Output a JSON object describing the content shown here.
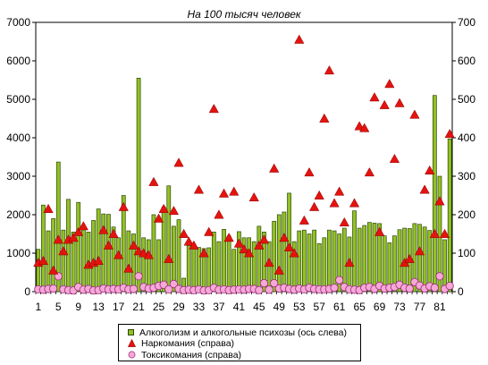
{
  "chart_data": {
    "type": "bar",
    "title": "На 100 тысяч человек",
    "x": [
      1,
      2,
      3,
      4,
      5,
      6,
      7,
      8,
      9,
      10,
      11,
      12,
      13,
      14,
      15,
      16,
      17,
      18,
      19,
      20,
      21,
      22,
      23,
      24,
      25,
      26,
      27,
      28,
      29,
      30,
      31,
      32,
      33,
      34,
      35,
      36,
      37,
      38,
      39,
      40,
      41,
      42,
      43,
      44,
      45,
      46,
      47,
      48,
      49,
      50,
      51,
      52,
      53,
      54,
      55,
      56,
      57,
      58,
      59,
      60,
      61,
      62,
      63,
      64,
      65,
      66,
      67,
      68,
      69,
      70,
      71,
      72,
      73,
      74,
      75,
      76,
      77,
      78,
      79,
      80,
      81,
      82,
      83
    ],
    "x_tick_labels": [
      "1",
      "5",
      "9",
      "13",
      "17",
      "21",
      "25",
      "29",
      "33",
      "37",
      "41",
      "45",
      "49",
      "53",
      "57",
      "61",
      "65",
      "69",
      "73",
      "77",
      "81"
    ],
    "y_left_ticks": [
      "0",
      "1000",
      "2000",
      "3000",
      "4000",
      "5000",
      "6000",
      "7000"
    ],
    "y_right_ticks": [
      "0",
      "100",
      "200",
      "300",
      "400",
      "500",
      "600",
      "700"
    ],
    "y_left_lim": [
      0,
      7000
    ],
    "y_right_lim": [
      0,
      700
    ],
    "grid": false,
    "legend_position": "bottom",
    "series": [
      {
        "name": "Алкоголизм и алкогольные психозы (ось слева)",
        "axis": "left",
        "kind": "bar",
        "color": "#93c024",
        "values": [
          1100,
          2250,
          1580,
          1900,
          3370,
          1600,
          2400,
          1550,
          2320,
          1700,
          1550,
          1850,
          2150,
          2020,
          2010,
          1680,
          1400,
          2500,
          1580,
          1500,
          5550,
          1400,
          1350,
          2000,
          1350,
          2200,
          2750,
          1700,
          1870,
          350,
          1200,
          1150,
          1150,
          1120,
          1140,
          1550,
          1300,
          1620,
          1450,
          1100,
          1560,
          1400,
          1400,
          1300,
          1700,
          1550,
          1300,
          1830,
          2000,
          2070,
          2560,
          1300,
          1580,
          1600,
          1500,
          1600,
          1250,
          1400,
          1600,
          1580,
          1500,
          1650,
          1420,
          2100,
          1650,
          1720,
          1800,
          1780,
          1770,
          1450,
          1270,
          1450,
          1610,
          1650,
          1640,
          1770,
          1750,
          1680,
          1590,
          5100,
          3000,
          1350,
          3970
        ]
      },
      {
        "name": "Наркомания (справа)",
        "axis": "right",
        "kind": "triangle",
        "color": "#e4130f",
        "values": [
          75,
          80,
          215,
          55,
          135,
          105,
          135,
          140,
          155,
          170,
          70,
          75,
          80,
          160,
          120,
          150,
          95,
          220,
          60,
          120,
          105,
          100,
          95,
          285,
          190,
          215,
          85,
          210,
          335,
          150,
          130,
          120,
          265,
          100,
          155,
          475,
          200,
          255,
          140,
          260,
          125,
          110,
          100,
          245,
          120,
          135,
          75,
          320,
          55,
          140,
          115,
          100,
          655,
          185,
          310,
          220,
          250,
          450,
          575,
          230,
          260,
          180,
          75,
          230,
          430,
          425,
          310,
          505,
          155,
          485,
          540,
          345,
          490,
          75,
          85,
          460,
          105,
          265,
          315,
          150,
          235,
          150,
          410
        ]
      },
      {
        "name": "Токсикомания (справа)",
        "axis": "right",
        "kind": "circle",
        "color": "#f6a8d8",
        "values": [
          6,
          5,
          7,
          8,
          40,
          6,
          4,
          3,
          12,
          5,
          7,
          3,
          4,
          8,
          6,
          7,
          6,
          10,
          6,
          7,
          40,
          12,
          8,
          10,
          15,
          18,
          6,
          20,
          7,
          4,
          5,
          4,
          6,
          3,
          4,
          10,
          5,
          6,
          4,
          5,
          6,
          5,
          7,
          7,
          4,
          22,
          5,
          22,
          8,
          10,
          7,
          5,
          8,
          6,
          10,
          7,
          6,
          6,
          7,
          10,
          30,
          12,
          6,
          5,
          4,
          10,
          12,
          7,
          15,
          8,
          10,
          12,
          18,
          10,
          8,
          25,
          16,
          8,
          14,
          10,
          40,
          7,
          15
        ]
      }
    ]
  }
}
